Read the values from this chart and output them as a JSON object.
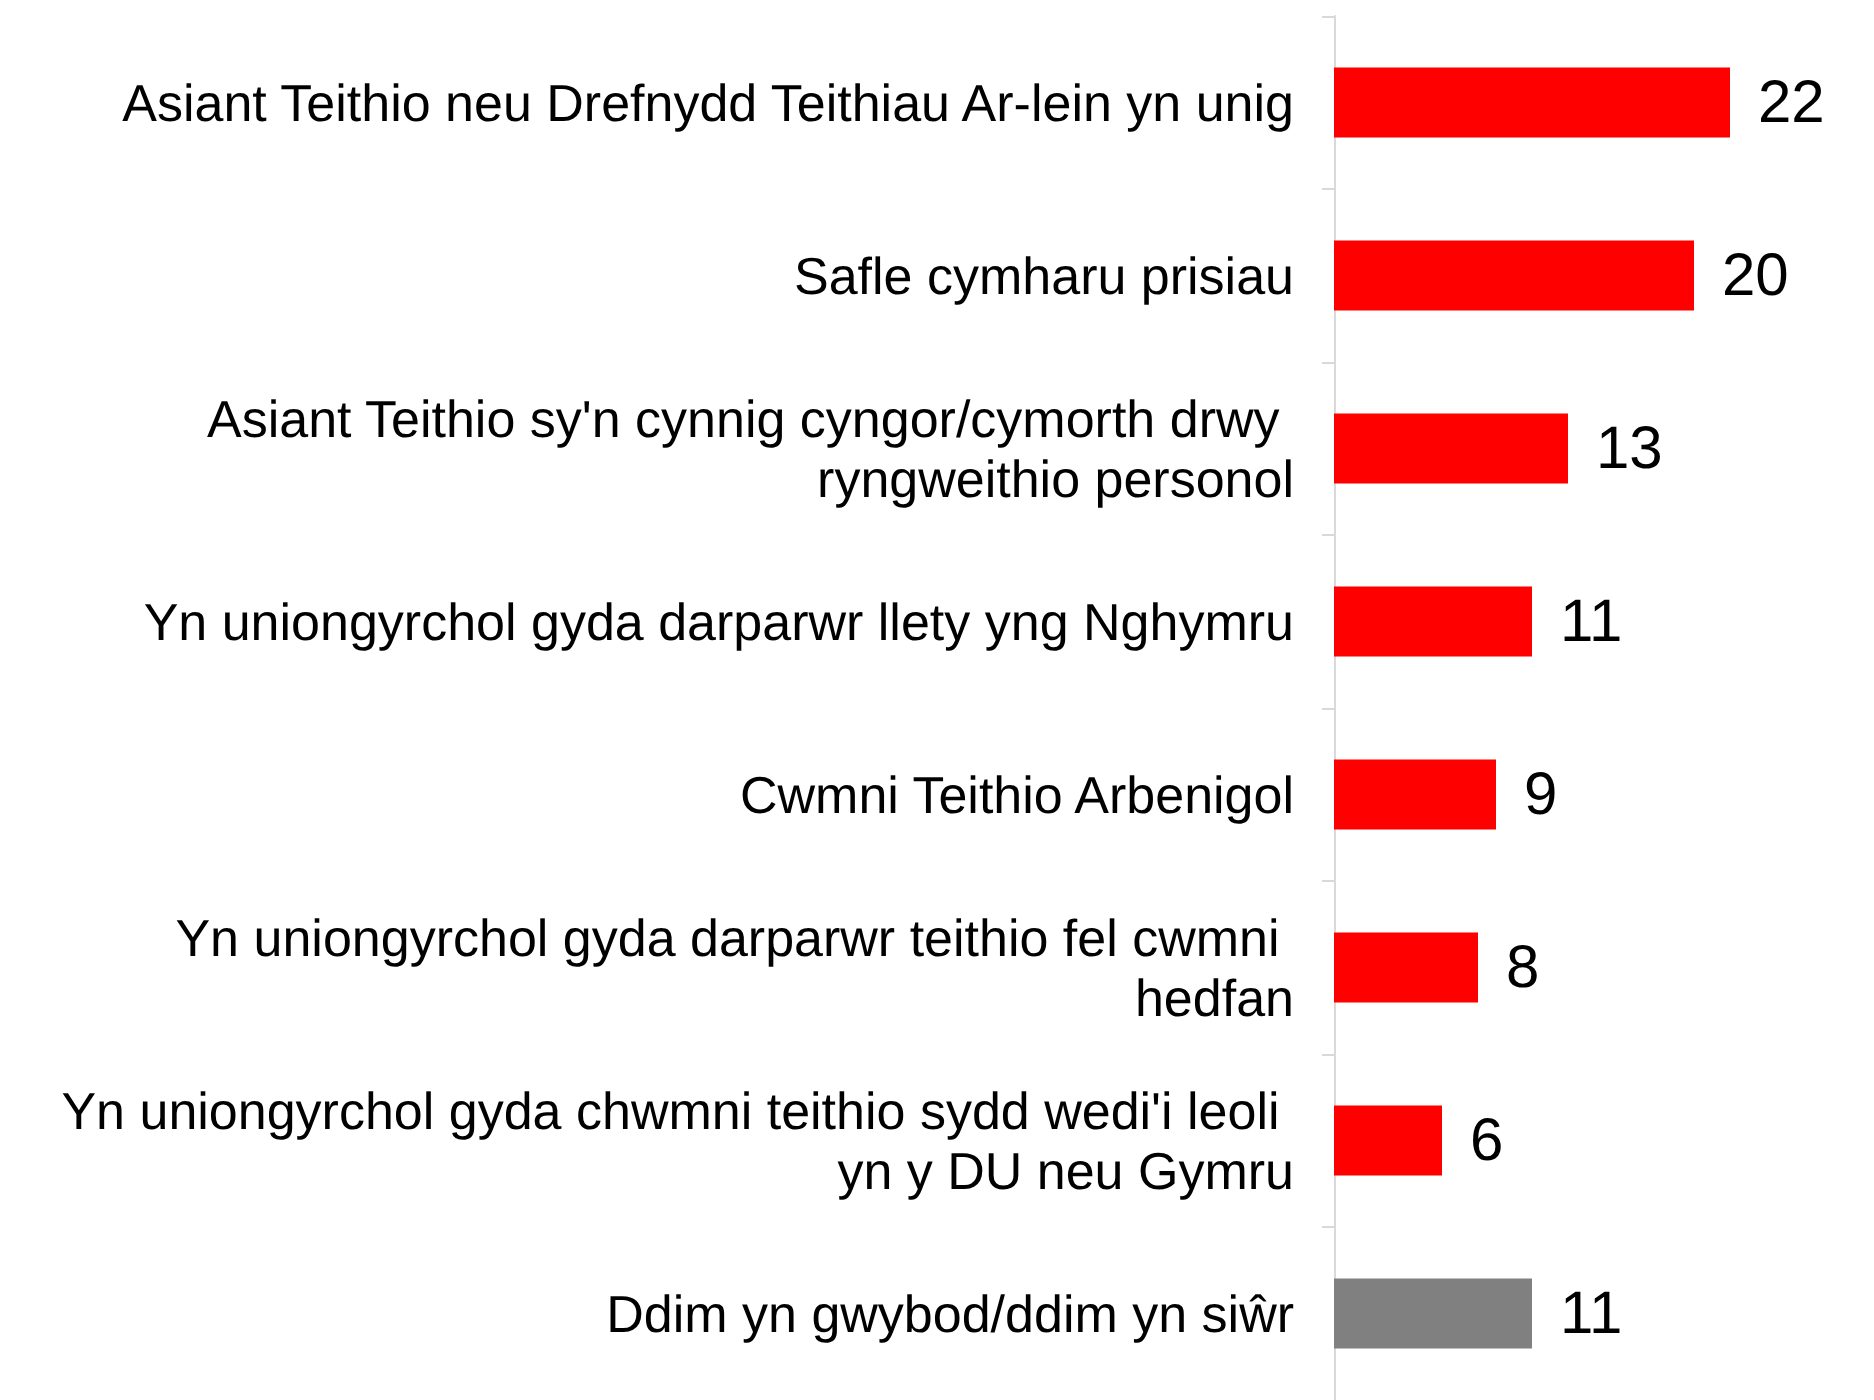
{
  "chart_data": {
    "type": "bar",
    "orientation": "horizontal",
    "categories": [
      "Asiant Teithio neu Drefnydd Teithiau Ar-lein yn unig",
      "Safle cymharu prisiau",
      "Asiant Teithio sy'n cynnig cyngor/cymorth drwy ryngweithio personol",
      "Yn uniongyrchol gyda darparwr llety yng Nghymru",
      "Cwmni Teithio Arbenigol",
      "Yn uniongyrchol gyda darparwr teithio fel cwmni hedfan",
      "Yn uniongyrchol gyda chwmni teithio sydd wedi'i leoli yn y DU neu Gymru",
      "Ddim yn gwybod/ddim yn siŵr"
    ],
    "values": [
      22,
      20,
      13,
      11,
      9,
      8,
      6,
      11
    ],
    "colors": [
      "#ff0000",
      "#ff0000",
      "#ff0000",
      "#ff0000",
      "#ff0000",
      "#ff0000",
      "#ff0000",
      "#808080"
    ],
    "data_labels": true
  }
}
